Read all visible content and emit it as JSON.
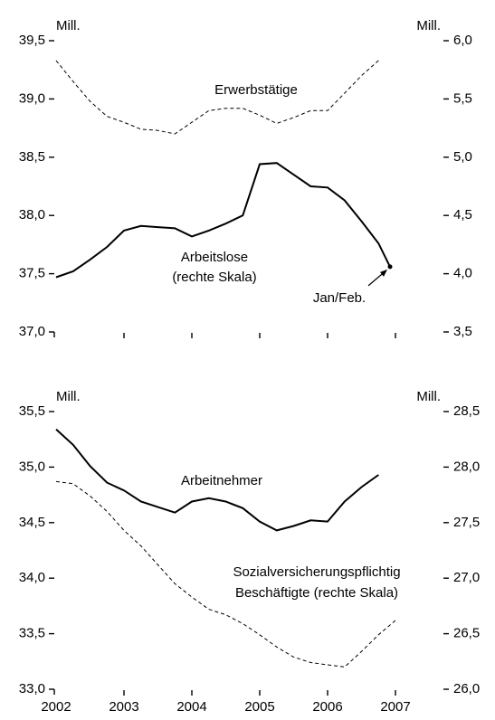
{
  "chart_data": [
    {
      "type": "line",
      "y_unit": "Mill.",
      "y2_unit": "Mill.",
      "ylim": [
        37.0,
        39.5
      ],
      "yticks": [
        {
          "value": 37.0,
          "label": "37,0"
        },
        {
          "value": 37.5,
          "label": "37,5"
        },
        {
          "value": 38.0,
          "label": "38,0"
        },
        {
          "value": 38.5,
          "label": "38,5"
        },
        {
          "value": 39.0,
          "label": "39,0"
        },
        {
          "value": 39.5,
          "label": "39,5"
        }
      ],
      "y2lim": [
        3.5,
        6.0
      ],
      "y2ticks": [
        {
          "value": 3.5,
          "label": "3,5"
        },
        {
          "value": 4.0,
          "label": "4,0"
        },
        {
          "value": 4.5,
          "label": "4,5"
        },
        {
          "value": 5.0,
          "label": "5,0"
        },
        {
          "value": 5.5,
          "label": "5,5"
        },
        {
          "value": 6.0,
          "label": "6,0"
        }
      ],
      "xlim": [
        2002,
        2007
      ],
      "xticks": [
        2003,
        2004,
        2005,
        2006,
        2007
      ],
      "show_xtick_labels": false,
      "series": [
        {
          "color": "#000000",
          "dashed": true,
          "x": [
            2002.0,
            2002.25,
            2002.5,
            2002.75,
            2003.0,
            2003.25,
            2003.5,
            2003.75,
            2004.0,
            2004.25,
            2004.5,
            2004.75,
            2005.0,
            2005.25,
            2005.5,
            2005.75,
            2006.0,
            2006.25,
            2006.5,
            2006.75
          ],
          "values": [
            39.33,
            39.15,
            38.98,
            38.85,
            38.8,
            38.74,
            38.73,
            38.7,
            38.8,
            38.9,
            38.92,
            38.92,
            38.86,
            38.79,
            38.84,
            38.9,
            38.9,
            39.05,
            39.2,
            39.33
          ]
        },
        {
          "color": "#000000",
          "dashed": false,
          "axis": "y2",
          "end_marker": true,
          "x": [
            2002.0,
            2002.25,
            2002.5,
            2002.75,
            2003.0,
            2003.25,
            2003.5,
            2003.75,
            2004.0,
            2004.25,
            2004.5,
            2004.75,
            2005.0,
            2005.25,
            2005.5,
            2005.75,
            2006.0,
            2006.25,
            2006.5,
            2006.75,
            2006.92
          ],
          "values": [
            3.97,
            4.02,
            4.12,
            4.23,
            4.37,
            4.41,
            4.4,
            4.39,
            4.32,
            4.37,
            4.43,
            4.5,
            4.94,
            4.95,
            4.85,
            4.75,
            4.74,
            4.63,
            4.45,
            4.26,
            4.06
          ]
        }
      ],
      "annotations": [
        "Erwerbstätige",
        "Arbeitslose",
        "(rechte Skala)",
        "Jan/Feb."
      ]
    },
    {
      "type": "line",
      "y_unit": "Mill.",
      "y2_unit": "Mill.",
      "ylim": [
        33.0,
        35.5
      ],
      "yticks": [
        {
          "value": 33.0,
          "label": "33,0"
        },
        {
          "value": 33.5,
          "label": "33,5"
        },
        {
          "value": 34.0,
          "label": "34,0"
        },
        {
          "value": 34.5,
          "label": "34,5"
        },
        {
          "value": 35.0,
          "label": "35,0"
        },
        {
          "value": 35.5,
          "label": "35,5"
        }
      ],
      "y2lim": [
        26.0,
        28.5
      ],
      "y2ticks": [
        {
          "value": 26.0,
          "label": "26,0"
        },
        {
          "value": 26.5,
          "label": "26,5"
        },
        {
          "value": 27.0,
          "label": "27,0"
        },
        {
          "value": 27.5,
          "label": "27,5"
        },
        {
          "value": 28.0,
          "label": "28,0"
        },
        {
          "value": 28.5,
          "label": "28,5"
        }
      ],
      "xlim": [
        2002,
        2007
      ],
      "xticks": [
        2002,
        2003,
        2004,
        2005,
        2006,
        2007
      ],
      "show_xtick_labels": true,
      "series": [
        {
          "color": "#000000",
          "dashed": false,
          "x": [
            2002.0,
            2002.25,
            2002.5,
            2002.75,
            2003.0,
            2003.25,
            2003.5,
            2003.75,
            2004.0,
            2004.25,
            2004.5,
            2004.75,
            2005.0,
            2005.25,
            2005.5,
            2005.75,
            2006.0,
            2006.25,
            2006.5,
            2006.75
          ],
          "values": [
            35.34,
            35.2,
            35.01,
            34.86,
            34.79,
            34.69,
            34.64,
            34.59,
            34.69,
            34.72,
            34.69,
            34.63,
            34.51,
            34.43,
            34.47,
            34.52,
            34.51,
            34.69,
            34.82,
            34.93
          ]
        },
        {
          "color": "#000000",
          "dashed": true,
          "axis": "y2",
          "x": [
            2002.0,
            2002.25,
            2002.5,
            2002.75,
            2003.0,
            2003.25,
            2003.5,
            2003.75,
            2004.0,
            2004.25,
            2004.5,
            2004.75,
            2005.0,
            2005.25,
            2005.5,
            2005.75,
            2006.0,
            2006.25,
            2006.5,
            2006.75,
            2007.0
          ],
          "values": [
            27.87,
            27.85,
            27.74,
            27.6,
            27.43,
            27.29,
            27.12,
            26.95,
            26.83,
            26.72,
            26.67,
            26.59,
            26.49,
            26.38,
            26.29,
            26.24,
            26.22,
            26.2,
            26.34,
            26.49,
            26.62
          ]
        }
      ],
      "annotations": [
        "Arbeitnehmer",
        "Sozialversicherungspflichtig",
        "Beschäftigte (rechte Skala)"
      ]
    }
  ]
}
